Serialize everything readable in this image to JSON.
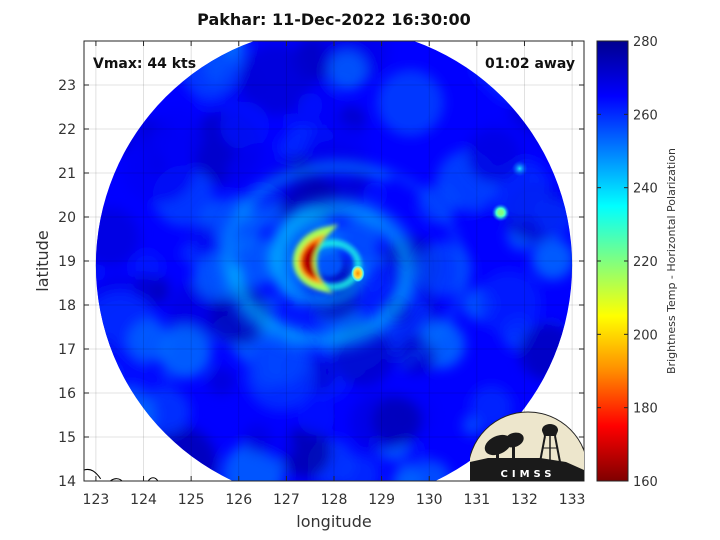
{
  "chart_data": {
    "type": "heatmap",
    "title": "Pakhar: 11-Dec-2022 16:30:00",
    "xlabel": "longitude",
    "ylabel": "latitude",
    "xlim": [
      122.75,
      133.25
    ],
    "ylim": [
      14,
      24
    ],
    "xticks": [
      123,
      124,
      125,
      126,
      127,
      128,
      129,
      130,
      131,
      132,
      133
    ],
    "yticks": [
      14,
      15,
      16,
      17,
      18,
      19,
      20,
      21,
      22,
      23
    ],
    "grid": true,
    "annotations": {
      "vmax": "Vmax: 44 kts",
      "away": "01:02 away"
    },
    "colorbar": {
      "label": "Brightness Temp - Horizontal Polarization",
      "min": 160,
      "max": 280,
      "ticks": [
        160,
        180,
        200,
        220,
        240,
        260,
        280
      ],
      "colors": [
        "#7f0000",
        "#ff0000",
        "#ff8c00",
        "#ffff00",
        "#80ff80",
        "#00ffff",
        "#0080ff",
        "#0000ff",
        "#00008f"
      ]
    },
    "swath": {
      "center": [
        128.0,
        18.9
      ],
      "radius_deg": 5.0,
      "background_temp": 265
    },
    "features": [
      {
        "name": "eyewall-core",
        "lon": 127.5,
        "lat": 19.0,
        "min_temp": 165
      },
      {
        "name": "spiral-band-tail",
        "lon": 128.5,
        "lat": 18.9,
        "min_temp": 200
      },
      {
        "name": "convection-northeast",
        "lon": 131.5,
        "lat": 20.1,
        "min_temp": 220
      },
      {
        "name": "convection-far-northeast",
        "lon": 131.9,
        "lat": 21.1,
        "min_temp": 240
      }
    ]
  },
  "logo": {
    "text": "CIMSS"
  }
}
